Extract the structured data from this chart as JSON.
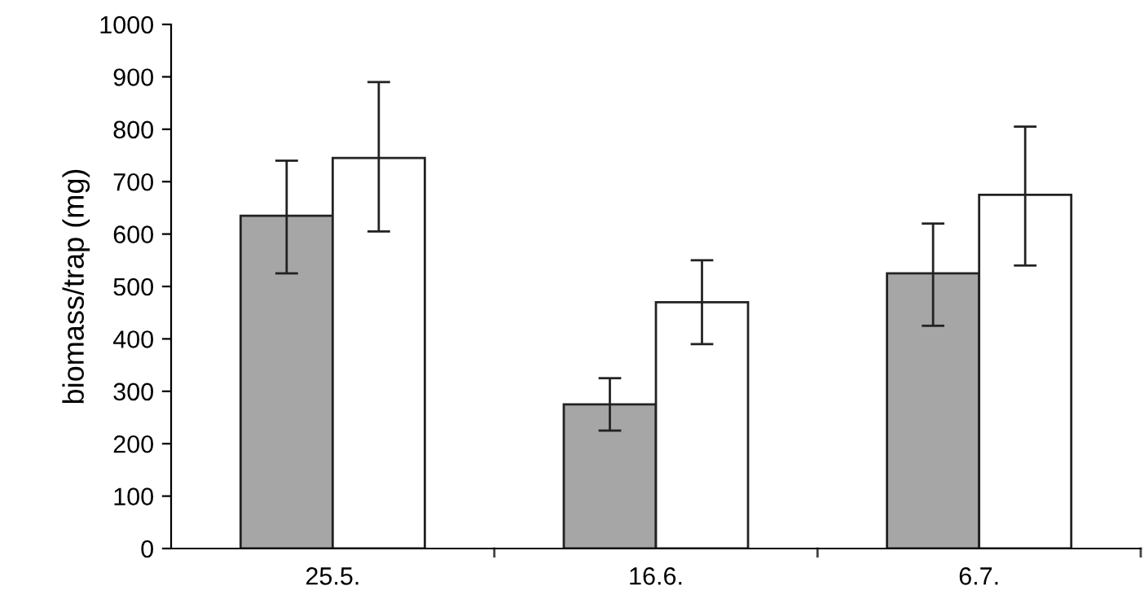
{
  "chart_data": {
    "type": "bar",
    "ylabel": "biomass/trap (mg)",
    "categories": [
      "25.5.",
      "16.6.",
      "6.7."
    ],
    "series": [
      {
        "color": "#a6a6a6",
        "values": [
          635,
          275,
          525
        ],
        "errors": [
          [
            525,
            740
          ],
          [
            225,
            325
          ],
          [
            425,
            620
          ]
        ]
      },
      {
        "color": "#ffffff",
        "values": [
          745,
          470,
          675
        ],
        "errors": [
          [
            605,
            890
          ],
          [
            390,
            550
          ],
          [
            540,
            805
          ]
        ]
      }
    ],
    "ylim": [
      0,
      1000
    ],
    "yticks": [
      0,
      100,
      200,
      300,
      400,
      500,
      600,
      700,
      800,
      900,
      1000
    ],
    "grid": false,
    "legend": false
  }
}
